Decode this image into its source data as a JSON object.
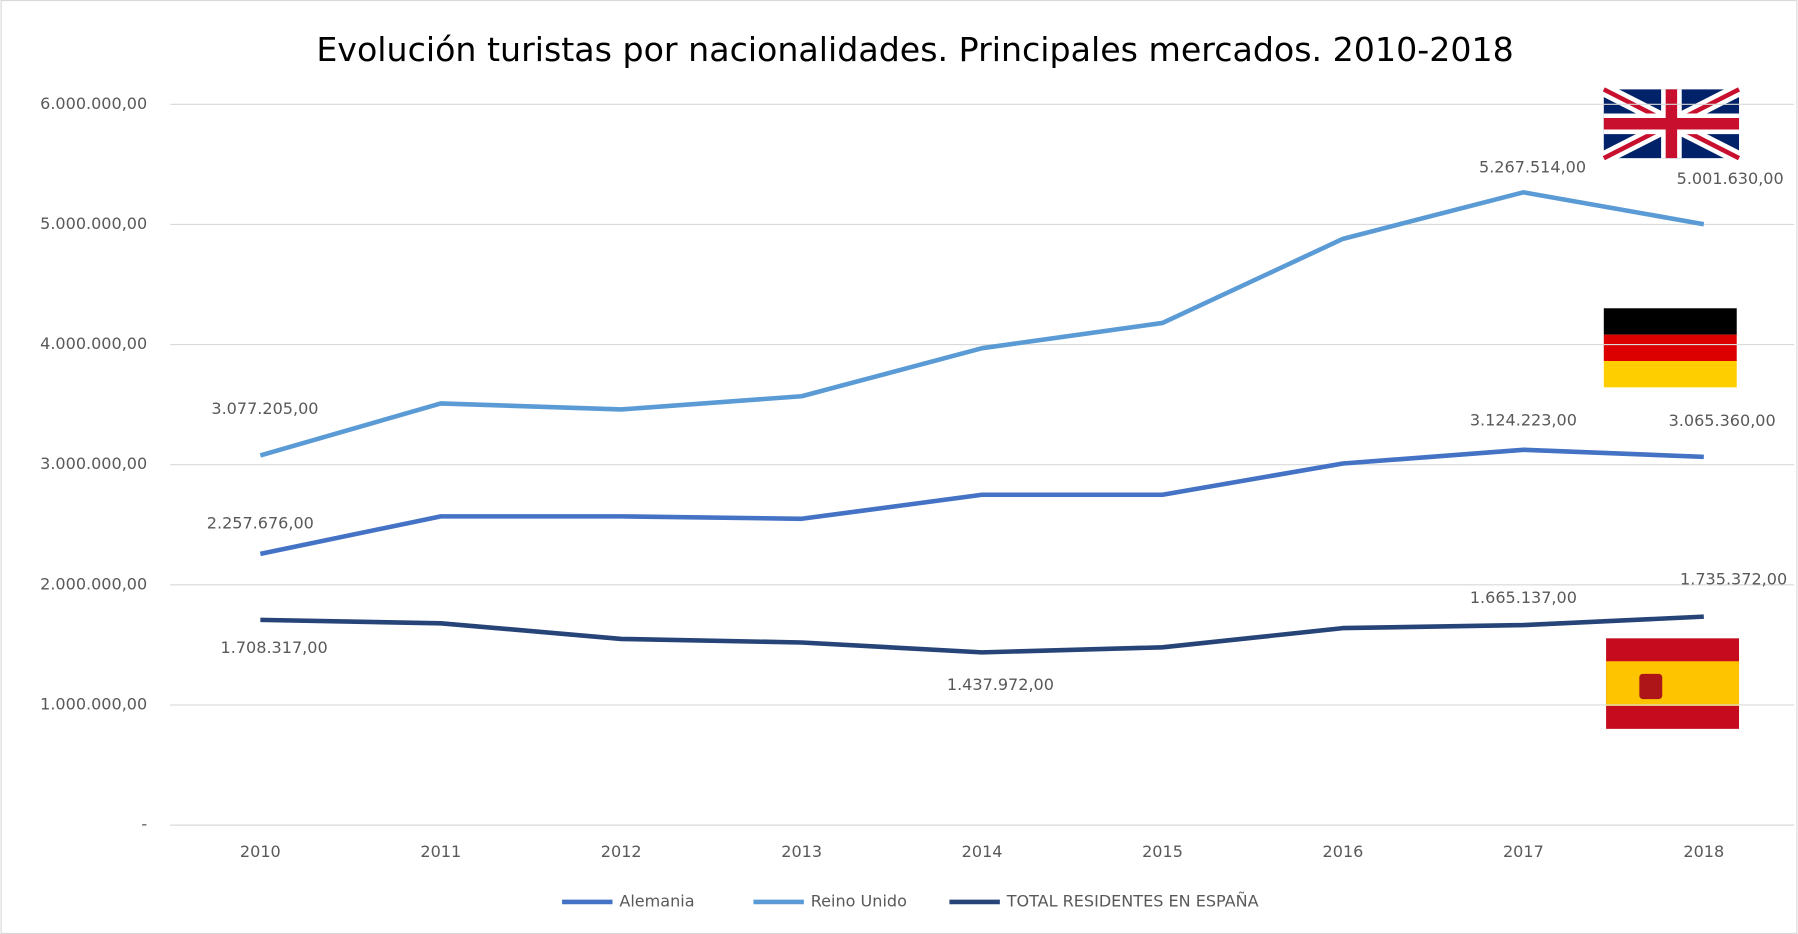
{
  "chart_data": {
    "type": "line",
    "title": "Evolución turistas por nacionalidades. Principales mercados. 2010-2018",
    "categories": [
      "2010",
      "2011",
      "2012",
      "2013",
      "2014",
      "2015",
      "2016",
      "2017",
      "2018"
    ],
    "series": [
      {
        "name": "Alemania",
        "color": "#4472c4",
        "values": [
          2257676,
          2570000,
          2570000,
          2550000,
          2750000,
          2750000,
          3010000,
          3124223,
          3065360
        ],
        "value_labels": [
          "2.257.676,00",
          null,
          null,
          null,
          null,
          null,
          null,
          "3.124.223,00",
          "3.065.360,00"
        ]
      },
      {
        "name": "Reino Unido",
        "color": "#5b9bd5",
        "values": [
          3077205,
          3510000,
          3460000,
          3570000,
          3970000,
          4180000,
          4880000,
          5267514,
          5001630
        ],
        "value_labels": [
          "3.077.205,00",
          null,
          null,
          null,
          null,
          null,
          null,
          "5.267.514,00",
          "5.001.630,00"
        ]
      },
      {
        "name": "TOTAL RESIDENTES EN ESPAÑA",
        "color": "#264478",
        "values": [
          1708317,
          1680000,
          1550000,
          1520000,
          1437972,
          1480000,
          1640000,
          1665137,
          1735372
        ],
        "value_labels": [
          "1.708.317,00",
          null,
          null,
          null,
          "1.437.972,00",
          null,
          null,
          "1.665.137,00",
          "1.735.372,00"
        ]
      }
    ],
    "ylim": [
      0,
      6000000
    ],
    "yticks": [
      {
        "value": 0,
        "label": "-"
      },
      {
        "value": 1000000,
        "label": "1.000.000,00"
      },
      {
        "value": 2000000,
        "label": "2.000.000,00"
      },
      {
        "value": 3000000,
        "label": "3.000.000,00"
      },
      {
        "value": 4000000,
        "label": "4.000.000,00"
      },
      {
        "value": 5000000,
        "label": "5.000.000,00"
      },
      {
        "value": 6000000,
        "label": "6.000.000,00"
      }
    ],
    "grid": true
  }
}
